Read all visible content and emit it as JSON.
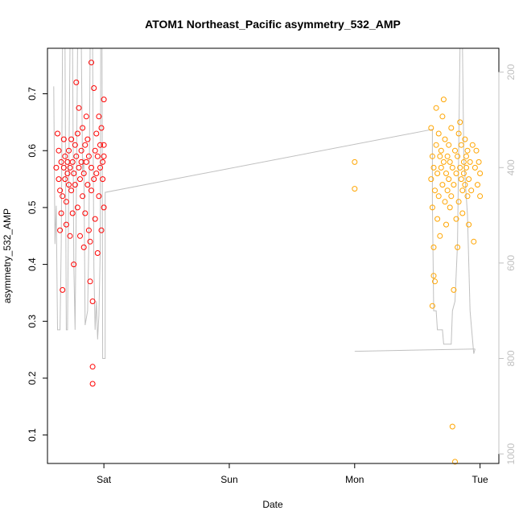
{
  "chart_data": {
    "type": "scatter",
    "title": "ATOM1 Northeast_Pacific asymmetry_532_AMP",
    "xlabel": "Date",
    "ylabel": "asymmetry_532_AMP",
    "x_unit": "days since Sat 00:00",
    "xlim": [
      -0.45,
      3.15
    ],
    "ylim": [
      0.05,
      0.78
    ],
    "y_ticks": [
      0.1,
      0.2,
      0.3,
      0.4,
      0.5,
      0.6,
      0.7
    ],
    "x_ticks": [
      {
        "value": 0,
        "label": "Sat"
      },
      {
        "value": 1,
        "label": "Sun"
      },
      {
        "value": 2,
        "label": "Mon"
      },
      {
        "value": 3,
        "label": "Tue"
      }
    ],
    "right_axis": {
      "reversed": true,
      "lim": [
        150,
        1020
      ],
      "ticks": [
        200,
        400,
        600,
        800,
        1000
      ],
      "color": "#c0c0c0"
    },
    "grid": false,
    "legend": "none",
    "series": [
      {
        "color": "#ff0000",
        "points": [
          [
            -0.38,
            0.57
          ],
          [
            -0.37,
            0.63
          ],
          [
            -0.36,
            0.55
          ],
          [
            -0.36,
            0.6
          ],
          [
            -0.35,
            0.53
          ],
          [
            -0.35,
            0.46
          ],
          [
            -0.34,
            0.58
          ],
          [
            -0.34,
            0.49
          ],
          [
            -0.33,
            0.52
          ],
          [
            -0.33,
            0.355
          ],
          [
            -0.32,
            0.57
          ],
          [
            -0.32,
            0.62
          ],
          [
            -0.31,
            0.55
          ],
          [
            -0.31,
            0.59
          ],
          [
            -0.3,
            0.51
          ],
          [
            -0.3,
            0.47
          ],
          [
            -0.29,
            0.58
          ],
          [
            -0.29,
            0.56
          ],
          [
            -0.28,
            0.6
          ],
          [
            -0.28,
            0.54
          ],
          [
            -0.27,
            0.45
          ],
          [
            -0.27,
            0.57
          ],
          [
            -0.26,
            0.62
          ],
          [
            -0.26,
            0.53
          ],
          [
            -0.25,
            0.58
          ],
          [
            -0.25,
            0.49
          ],
          [
            -0.24,
            0.4
          ],
          [
            -0.24,
            0.56
          ],
          [
            -0.23,
            0.61
          ],
          [
            -0.23,
            0.54
          ],
          [
            -0.22,
            0.72
          ],
          [
            -0.22,
            0.59
          ],
          [
            -0.21,
            0.5
          ],
          [
            -0.21,
            0.63
          ],
          [
            -0.2,
            0.57
          ],
          [
            -0.2,
            0.675
          ],
          [
            -0.19,
            0.55
          ],
          [
            -0.19,
            0.45
          ],
          [
            -0.18,
            0.58
          ],
          [
            -0.18,
            0.6
          ],
          [
            -0.17,
            0.52
          ],
          [
            -0.17,
            0.64
          ],
          [
            -0.16,
            0.56
          ],
          [
            -0.16,
            0.43
          ],
          [
            -0.15,
            0.61
          ],
          [
            -0.15,
            0.49
          ],
          [
            -0.14,
            0.66
          ],
          [
            -0.14,
            0.58
          ],
          [
            -0.13,
            0.54
          ],
          [
            -0.13,
            0.62
          ],
          [
            -0.12,
            0.46
          ],
          [
            -0.12,
            0.59
          ],
          [
            -0.11,
            0.44
          ],
          [
            -0.11,
            0.37
          ],
          [
            -0.1,
            0.57
          ],
          [
            -0.1,
            0.53
          ],
          [
            -0.1,
            0.755
          ],
          [
            -0.09,
            0.22
          ],
          [
            -0.09,
            0.19
          ],
          [
            -0.09,
            0.335
          ],
          [
            -0.08,
            0.71
          ],
          [
            -0.08,
            0.55
          ],
          [
            -0.07,
            0.6
          ],
          [
            -0.07,
            0.48
          ],
          [
            -0.06,
            0.63
          ],
          [
            -0.06,
            0.56
          ],
          [
            -0.05,
            0.42
          ],
          [
            -0.05,
            0.59
          ],
          [
            -0.04,
            0.66
          ],
          [
            -0.04,
            0.52
          ],
          [
            -0.03,
            0.57
          ],
          [
            -0.03,
            0.61
          ],
          [
            -0.02,
            0.46
          ],
          [
            -0.02,
            0.64
          ],
          [
            -0.01,
            0.58
          ],
          [
            -0.01,
            0.55
          ],
          [
            0.0,
            0.69
          ],
          [
            0.0,
            0.61
          ],
          [
            0.0,
            0.5
          ],
          [
            0.0,
            0.59
          ]
        ]
      },
      {
        "color": "#ffa500",
        "points": [
          [
            2.0,
            0.58
          ],
          [
            2.0,
            0.533
          ],
          [
            2.61,
            0.64
          ],
          [
            2.61,
            0.55
          ],
          [
            2.62,
            0.5
          ],
          [
            2.62,
            0.59
          ],
          [
            2.62,
            0.327
          ],
          [
            2.63,
            0.43
          ],
          [
            2.63,
            0.57
          ],
          [
            2.63,
            0.38
          ],
          [
            2.64,
            0.53
          ],
          [
            2.64,
            0.37
          ],
          [
            2.65,
            0.675
          ],
          [
            2.65,
            0.61
          ],
          [
            2.66,
            0.56
          ],
          [
            2.66,
            0.48
          ],
          [
            2.67,
            0.63
          ],
          [
            2.67,
            0.52
          ],
          [
            2.68,
            0.59
          ],
          [
            2.68,
            0.45
          ],
          [
            2.69,
            0.57
          ],
          [
            2.69,
            0.6
          ],
          [
            2.7,
            0.54
          ],
          [
            2.7,
            0.66
          ],
          [
            2.71,
            0.58
          ],
          [
            2.71,
            0.69
          ],
          [
            2.72,
            0.51
          ],
          [
            2.72,
            0.62
          ],
          [
            2.73,
            0.56
          ],
          [
            2.73,
            0.47
          ],
          [
            2.74,
            0.59
          ],
          [
            2.74,
            0.53
          ],
          [
            2.75,
            0.61
          ],
          [
            2.75,
            0.55
          ],
          [
            2.76,
            0.5
          ],
          [
            2.76,
            0.58
          ],
          [
            2.77,
            0.64
          ],
          [
            2.77,
            0.52
          ],
          [
            2.78,
            0.57
          ],
          [
            2.78,
            0.115
          ],
          [
            2.79,
            0.355
          ],
          [
            2.79,
            0.54
          ],
          [
            2.8,
            0.053
          ],
          [
            2.8,
            0.6
          ],
          [
            2.81,
            0.48
          ],
          [
            2.81,
            0.56
          ],
          [
            2.82,
            0.43
          ],
          [
            2.82,
            0.59
          ],
          [
            2.83,
            0.63
          ],
          [
            2.83,
            0.51
          ],
          [
            2.84,
            0.65
          ],
          [
            2.84,
            0.57
          ],
          [
            2.85,
            0.55
          ],
          [
            2.85,
            0.61
          ],
          [
            2.86,
            0.53
          ],
          [
            2.86,
            0.49
          ],
          [
            2.87,
            0.58
          ],
          [
            2.87,
            0.56
          ],
          [
            2.88,
            0.62
          ],
          [
            2.88,
            0.54
          ],
          [
            2.89,
            0.57
          ],
          [
            2.89,
            0.59
          ],
          [
            2.9,
            0.52
          ],
          [
            2.9,
            0.6
          ],
          [
            2.91,
            0.55
          ],
          [
            2.91,
            0.47
          ],
          [
            2.92,
            0.58
          ],
          [
            2.93,
            0.53
          ],
          [
            2.94,
            0.61
          ],
          [
            2.95,
            0.44
          ],
          [
            2.96,
            0.57
          ],
          [
            2.97,
            0.6
          ],
          [
            2.98,
            0.54
          ],
          [
            2.99,
            0.58
          ],
          [
            3.0,
            0.52
          ],
          [
            3.0,
            0.56
          ]
        ]
      }
    ],
    "altitude_trace": {
      "color": "#c0c0c0",
      "segments": [
        [
          [
            -0.4,
            230
          ],
          [
            -0.39,
            560
          ],
          [
            -0.38,
            480
          ],
          [
            -0.37,
            740
          ],
          [
            -0.35,
            740
          ],
          [
            -0.34,
            560
          ],
          [
            -0.33,
            150
          ],
          [
            -0.31,
            150
          ],
          [
            -0.3,
            740
          ],
          [
            -0.29,
            740
          ],
          [
            -0.28,
            420
          ],
          [
            -0.27,
            150
          ],
          [
            -0.25,
            150
          ],
          [
            -0.24,
            600
          ],
          [
            -0.23,
            740
          ],
          [
            -0.22,
            470
          ],
          [
            -0.21,
            150
          ],
          [
            -0.18,
            150
          ],
          [
            -0.17,
            410
          ],
          [
            -0.16,
            380
          ],
          [
            -0.15,
            730
          ],
          [
            -0.13,
            700
          ],
          [
            -0.12,
            560
          ],
          [
            -0.11,
            150
          ],
          [
            -0.09,
            150
          ],
          [
            -0.08,
            610
          ],
          [
            -0.07,
            740
          ],
          [
            -0.06,
            680
          ],
          [
            -0.05,
            760
          ],
          [
            -0.04,
            710
          ],
          [
            -0.03,
            580
          ],
          [
            -0.025,
            150
          ],
          [
            -0.015,
            150
          ],
          [
            -0.01,
            800
          ],
          [
            0.0,
            800
          ],
          [
            0.01,
            800
          ],
          [
            0.01,
            452
          ],
          [
            2.62,
            320
          ],
          [
            2.62,
            470
          ],
          [
            2.63,
            700
          ],
          [
            2.65,
            700
          ],
          [
            2.66,
            740
          ],
          [
            2.7,
            740
          ],
          [
            2.71,
            770
          ],
          [
            2.77,
            770
          ],
          [
            2.78,
            700
          ],
          [
            2.8,
            680
          ],
          [
            2.82,
            560
          ],
          [
            2.84,
            150
          ],
          [
            2.86,
            150
          ],
          [
            2.87,
            380
          ],
          [
            2.9,
            500
          ],
          [
            2.92,
            700
          ],
          [
            2.93,
            730
          ],
          [
            2.95,
            790
          ],
          [
            2.96,
            780
          ]
        ],
        [
          [
            2.0,
            785
          ],
          [
            2.96,
            780
          ]
        ]
      ]
    }
  }
}
